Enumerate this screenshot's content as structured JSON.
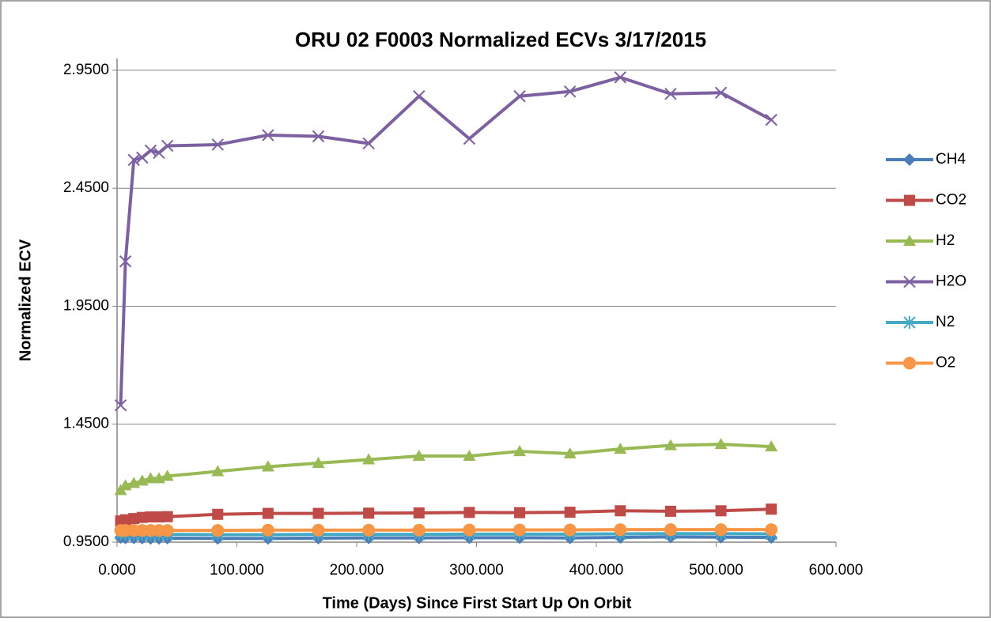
{
  "chart_data": {
    "type": "line",
    "title": "ORU 02 F0003 Normalized ECVs 3/17/2015",
    "x_label": "Time (Days) Since First Start Up On Orbit",
    "y_label": "Normalized ECV",
    "x": [
      3,
      7,
      14,
      21,
      28,
      35,
      42,
      84,
      126,
      168,
      210,
      252,
      294,
      336,
      378,
      420,
      462,
      504,
      546
    ],
    "series": [
      {
        "name": "CH4",
        "color": "#4a7ebb",
        "marker": "diamond",
        "values": [
          0.97,
          0.968,
          0.968,
          0.967,
          0.966,
          0.966,
          0.967,
          0.966,
          0.966,
          0.967,
          0.968,
          0.968,
          0.969,
          0.969,
          0.968,
          0.97,
          0.972,
          0.971,
          0.97
        ]
      },
      {
        "name": "CO2",
        "color": "#be4b48",
        "marker": "square",
        "values": [
          1.04,
          1.045,
          1.05,
          1.055,
          1.057,
          1.057,
          1.058,
          1.068,
          1.072,
          1.072,
          1.073,
          1.074,
          1.076,
          1.075,
          1.077,
          1.083,
          1.081,
          1.083,
          1.09
        ]
      },
      {
        "name": "H2",
        "color": "#98b954",
        "marker": "triangle",
        "values": [
          1.17,
          1.19,
          1.2,
          1.21,
          1.22,
          1.22,
          1.23,
          1.25,
          1.27,
          1.285,
          1.3,
          1.315,
          1.315,
          1.335,
          1.325,
          1.345,
          1.36,
          1.365,
          1.355
        ]
      },
      {
        "name": "H2O",
        "color": "#7d60a0",
        "marker": "x",
        "values": [
          1.53,
          2.14,
          2.57,
          2.58,
          2.61,
          2.6,
          2.63,
          2.635,
          2.675,
          2.67,
          2.64,
          2.84,
          2.66,
          2.84,
          2.86,
          2.92,
          2.85,
          2.855,
          2.74
        ]
      },
      {
        "name": "N2",
        "color": "#46aac5",
        "marker": "star",
        "values": [
          0.985,
          0.984,
          0.984,
          0.983,
          0.983,
          0.983,
          0.983,
          0.982,
          0.982,
          0.983,
          0.983,
          0.983,
          0.984,
          0.984,
          0.984,
          0.985,
          0.986,
          0.986,
          0.985
        ]
      },
      {
        "name": "O2",
        "color": "#f79646",
        "marker": "circle",
        "values": [
          1.0,
          1.0,
          1.0,
          1.0,
          1.0,
          1.0,
          1.0,
          1.0,
          1.001,
          1.001,
          1.001,
          1.001,
          1.002,
          1.002,
          1.002,
          1.003,
          1.003,
          1.003,
          1.003
        ]
      }
    ],
    "xlim": [
      0,
      600
    ],
    "xticks": [
      {
        "value": 0,
        "label": "0.000"
      },
      {
        "value": 100,
        "label": "100.000"
      },
      {
        "value": 200,
        "label": "200.000"
      },
      {
        "value": 300,
        "label": "300.000"
      },
      {
        "value": 400,
        "label": "400.000"
      },
      {
        "value": 500,
        "label": "500.000"
      },
      {
        "value": 600,
        "label": "600.000"
      }
    ],
    "ylim": [
      0.95,
      3.0
    ],
    "yticks": [
      {
        "value": 0.95,
        "label": "0.9500"
      },
      {
        "value": 1.45,
        "label": "1.4500"
      },
      {
        "value": 1.95,
        "label": "1.9500"
      },
      {
        "value": 2.45,
        "label": "2.4500"
      },
      {
        "value": 2.95,
        "label": "2.9500"
      }
    ],
    "grid": true,
    "legend": "right"
  }
}
